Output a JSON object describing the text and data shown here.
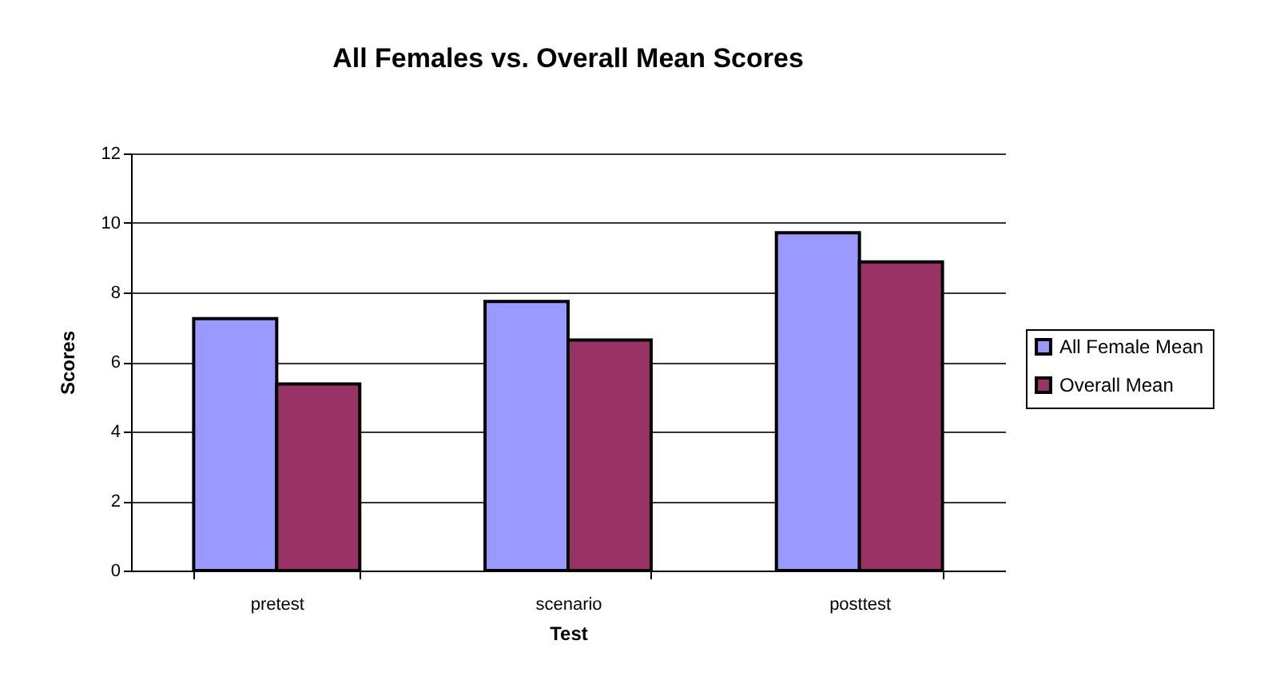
{
  "chart_data": {
    "type": "bar",
    "title": "All Females vs. Overall Mean Scores",
    "xlabel": "Test",
    "ylabel": "Scores",
    "categories": [
      "pretest",
      "scenario",
      "posttest"
    ],
    "series": [
      {
        "name": "All Female Mean",
        "color": "#9999ff",
        "values": [
          7.25,
          7.74,
          9.72
        ]
      },
      {
        "name": "Overall Mean",
        "color": "#993366",
        "values": [
          5.37,
          6.63,
          8.88
        ]
      }
    ],
    "ylim": [
      0,
      12
    ],
    "yticks": [
      0,
      2,
      4,
      6,
      8,
      10,
      12
    ],
    "grid": "y",
    "legend": "right"
  }
}
